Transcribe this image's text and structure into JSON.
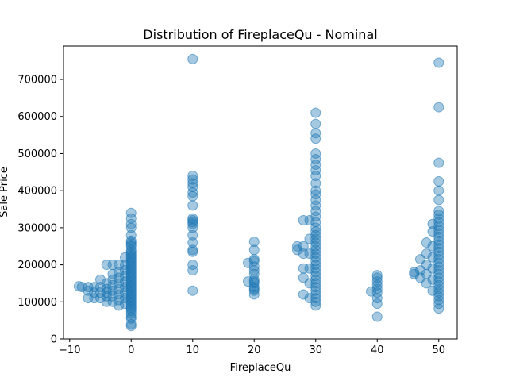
{
  "chart_data": {
    "type": "scatter",
    "title": "Distribution of FireplaceQu - Nominal",
    "xlabel": "FireplaceQu",
    "ylabel": "Sale Price",
    "xlim": [
      -11,
      53
    ],
    "ylim": [
      0,
      790000
    ],
    "x_ticks": [
      -10,
      0,
      10,
      20,
      30,
      40,
      50
    ],
    "y_ticks": [
      0,
      100000,
      200000,
      300000,
      400000,
      500000,
      600000,
      700000
    ],
    "grid": false,
    "point_color": "#1f77b4",
    "point_alpha": 0.4,
    "clusters": [
      {
        "x_center": 0,
        "points": [
          [
            0,
            34900
          ],
          [
            0,
            40000
          ],
          [
            0,
            55000
          ],
          [
            0,
            60000
          ],
          [
            0,
            68000
          ],
          [
            0,
            75000
          ],
          [
            0,
            80000
          ],
          [
            0,
            85000
          ],
          [
            0,
            90000
          ],
          [
            0,
            95000
          ],
          [
            0,
            100000
          ],
          [
            0,
            105000
          ],
          [
            0,
            110000
          ],
          [
            0,
            115000
          ],
          [
            0,
            120000
          ],
          [
            0,
            125000
          ],
          [
            0,
            130000
          ],
          [
            0,
            135000
          ],
          [
            0,
            140000
          ],
          [
            0,
            145000
          ],
          [
            0,
            150000
          ],
          [
            0,
            155000
          ],
          [
            0,
            160000
          ],
          [
            0,
            165000
          ],
          [
            0,
            170000
          ],
          [
            0,
            175000
          ],
          [
            0,
            180000
          ],
          [
            0,
            185000
          ],
          [
            0,
            190000
          ],
          [
            0,
            195000
          ],
          [
            0,
            200000
          ],
          [
            0,
            205000
          ],
          [
            0,
            210000
          ],
          [
            0,
            215000
          ],
          [
            0,
            220000
          ],
          [
            0,
            225000
          ],
          [
            0,
            230000
          ],
          [
            0,
            235000
          ],
          [
            0,
            240000
          ],
          [
            0,
            250000
          ],
          [
            0,
            255000
          ],
          [
            0,
            260000
          ],
          [
            0,
            265000
          ],
          [
            0,
            280000
          ],
          [
            0,
            300000
          ],
          [
            0,
            310000
          ],
          [
            0,
            325000
          ],
          [
            0,
            340000
          ],
          [
            -1,
            95000
          ],
          [
            -1,
            110000
          ],
          [
            -1,
            125000
          ],
          [
            -1,
            140000
          ],
          [
            -1,
            155000
          ],
          [
            -1,
            170000
          ],
          [
            -1,
            185000
          ],
          [
            -1,
            200000
          ],
          [
            -1,
            220000
          ],
          [
            -2,
            90000
          ],
          [
            -2,
            105000
          ],
          [
            -2,
            120000
          ],
          [
            -2,
            135000
          ],
          [
            -2,
            150000
          ],
          [
            -2,
            165000
          ],
          [
            -2,
            180000
          ],
          [
            -2,
            200000
          ],
          [
            -3,
            100000
          ],
          [
            -3,
            115000
          ],
          [
            -3,
            130000
          ],
          [
            -3,
            145000
          ],
          [
            -3,
            160000
          ],
          [
            -3,
            175000
          ],
          [
            -3,
            200000
          ],
          [
            -4,
            100000
          ],
          [
            -4,
            115000
          ],
          [
            -4,
            125000
          ],
          [
            -4,
            135000
          ],
          [
            -4,
            150000
          ],
          [
            -4,
            200000
          ],
          [
            -5,
            110000
          ],
          [
            -5,
            125000
          ],
          [
            -5,
            140000
          ],
          [
            -5,
            160000
          ],
          [
            -6,
            110000
          ],
          [
            -6,
            125000
          ],
          [
            -6,
            140000
          ],
          [
            -7,
            110000
          ],
          [
            -7,
            130000
          ],
          [
            -7,
            140000
          ],
          [
            -8,
            140000
          ],
          [
            -8.5,
            142000
          ]
        ]
      },
      {
        "x_center": 10,
        "points": [
          [
            10,
            130000
          ],
          [
            10,
            185000
          ],
          [
            10,
            200000
          ],
          [
            10,
            235000
          ],
          [
            10,
            240000
          ],
          [
            10,
            260000
          ],
          [
            10,
            280000
          ],
          [
            10,
            300000
          ],
          [
            10,
            310000
          ],
          [
            10,
            315000
          ],
          [
            10,
            320000
          ],
          [
            10,
            325000
          ],
          [
            10,
            360000
          ],
          [
            10,
            385000
          ],
          [
            10,
            395000
          ],
          [
            10,
            410000
          ],
          [
            10,
            420000
          ],
          [
            10,
            430000
          ],
          [
            10,
            440000
          ],
          [
            10,
            755000
          ]
        ]
      },
      {
        "x_center": 20,
        "points": [
          [
            20,
            120000
          ],
          [
            20,
            130000
          ],
          [
            20,
            135000
          ],
          [
            20,
            140000
          ],
          [
            20,
            150000
          ],
          [
            20,
            155000
          ],
          [
            20,
            160000
          ],
          [
            20,
            175000
          ],
          [
            20,
            185000
          ],
          [
            20,
            195000
          ],
          [
            20,
            210000
          ],
          [
            20,
            215000
          ],
          [
            20,
            240000
          ],
          [
            20,
            262000
          ],
          [
            19,
            155000
          ],
          [
            19,
            205000
          ]
        ]
      },
      {
        "x_center": 30,
        "points": [
          [
            30,
            90000
          ],
          [
            30,
            100000
          ],
          [
            30,
            110000
          ],
          [
            30,
            120000
          ],
          [
            30,
            130000
          ],
          [
            30,
            140000
          ],
          [
            30,
            150000
          ],
          [
            30,
            160000
          ],
          [
            30,
            170000
          ],
          [
            30,
            180000
          ],
          [
            30,
            190000
          ],
          [
            30,
            200000
          ],
          [
            30,
            210000
          ],
          [
            30,
            220000
          ],
          [
            30,
            230000
          ],
          [
            30,
            240000
          ],
          [
            30,
            250000
          ],
          [
            30,
            260000
          ],
          [
            30,
            270000
          ],
          [
            30,
            280000
          ],
          [
            30,
            290000
          ],
          [
            30,
            300000
          ],
          [
            30,
            315000
          ],
          [
            30,
            330000
          ],
          [
            30,
            345000
          ],
          [
            30,
            360000
          ],
          [
            30,
            375000
          ],
          [
            30,
            390000
          ],
          [
            30,
            400000
          ],
          [
            30,
            420000
          ],
          [
            30,
            440000
          ],
          [
            30,
            455000
          ],
          [
            30,
            470000
          ],
          [
            30,
            485000
          ],
          [
            30,
            500000
          ],
          [
            30,
            540000
          ],
          [
            30,
            555000
          ],
          [
            30,
            580000
          ],
          [
            30,
            610000
          ],
          [
            29,
            110000
          ],
          [
            29,
            150000
          ],
          [
            29,
            190000
          ],
          [
            29,
            230000
          ],
          [
            29,
            270000
          ],
          [
            29,
            320000
          ],
          [
            28,
            120000
          ],
          [
            28,
            165000
          ],
          [
            28,
            190000
          ],
          [
            28,
            230000
          ],
          [
            28,
            250000
          ],
          [
            28,
            320000
          ],
          [
            27,
            250000
          ],
          [
            27,
            240000
          ]
        ]
      },
      {
        "x_center": 40,
        "points": [
          [
            40,
            60000
          ],
          [
            40,
            95000
          ],
          [
            40,
            110000
          ],
          [
            40,
            125000
          ],
          [
            40,
            135000
          ],
          [
            40,
            145000
          ],
          [
            40,
            155000
          ],
          [
            40,
            165000
          ],
          [
            40,
            172000
          ],
          [
            39,
            128000
          ]
        ]
      },
      {
        "x_center": 50,
        "points": [
          [
            50,
            82000
          ],
          [
            50,
            95000
          ],
          [
            50,
            105000
          ],
          [
            50,
            115000
          ],
          [
            50,
            125000
          ],
          [
            50,
            135000
          ],
          [
            50,
            145000
          ],
          [
            50,
            155000
          ],
          [
            50,
            165000
          ],
          [
            50,
            175000
          ],
          [
            50,
            185000
          ],
          [
            50,
            195000
          ],
          [
            50,
            205000
          ],
          [
            50,
            215000
          ],
          [
            50,
            225000
          ],
          [
            50,
            235000
          ],
          [
            50,
            245000
          ],
          [
            50,
            255000
          ],
          [
            50,
            265000
          ],
          [
            50,
            275000
          ],
          [
            50,
            285000
          ],
          [
            50,
            295000
          ],
          [
            50,
            305000
          ],
          [
            50,
            315000
          ],
          [
            50,
            325000
          ],
          [
            50,
            335000
          ],
          [
            50,
            345000
          ],
          [
            50,
            375000
          ],
          [
            50,
            400000
          ],
          [
            50,
            425000
          ],
          [
            50,
            475000
          ],
          [
            50,
            625000
          ],
          [
            50,
            745000
          ],
          [
            49,
            130000
          ],
          [
            49,
            160000
          ],
          [
            49,
            190000
          ],
          [
            49,
            220000
          ],
          [
            49,
            250000
          ],
          [
            49,
            290000
          ],
          [
            49,
            310000
          ],
          [
            48,
            150000
          ],
          [
            48,
            175000
          ],
          [
            48,
            200000
          ],
          [
            48,
            230000
          ],
          [
            48,
            260000
          ],
          [
            47,
            165000
          ],
          [
            47,
            185000
          ],
          [
            47,
            215000
          ],
          [
            46,
            175000
          ],
          [
            46,
            180000
          ]
        ]
      }
    ]
  }
}
